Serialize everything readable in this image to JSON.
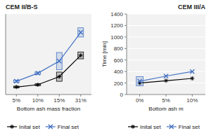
{
  "chart_data": [
    {
      "type": "line",
      "title": "CEM II/B-S",
      "xlabel": "Bottom ash mass fraction",
      "categories": [
        "5%",
        "10%",
        "15%",
        "31%"
      ],
      "series": [
        {
          "name": "Inital set",
          "color": "black",
          "marker": "asterisk",
          "values": [
            130,
            170,
            310,
            680
          ],
          "error": [
            15,
            15,
            80,
            60
          ]
        },
        {
          "name": "Final set",
          "color": "#4472C4",
          "marker": "x",
          "values": [
            230,
            370,
            580,
            1080
          ],
          "error": [
            20,
            20,
            150,
            80
          ]
        }
      ],
      "ylim": [
        0,
        1400
      ],
      "grid": false,
      "tick_labels": "x",
      "legend": "bottom"
    },
    {
      "type": "line",
      "title": "CEM III/A",
      "xlabel": "Bottom ash m",
      "ylabel": "Time [min]",
      "categories": [
        "0%",
        "5%",
        "10%"
      ],
      "series": [
        {
          "name": "Inital set",
          "color": "black",
          "marker": "asterisk",
          "values": [
            200,
            240,
            280
          ]
        },
        {
          "name": "Final set",
          "color": "#4472C4",
          "marker": "x",
          "values": [
            230,
            320,
            400
          ],
          "error": [
            80,
            null,
            null
          ]
        }
      ],
      "ylim": [
        0,
        1400
      ],
      "yticks": [
        0,
        200,
        400,
        600,
        800,
        1000,
        1200,
        1400
      ],
      "grid": true,
      "legend": "bottom"
    }
  ]
}
